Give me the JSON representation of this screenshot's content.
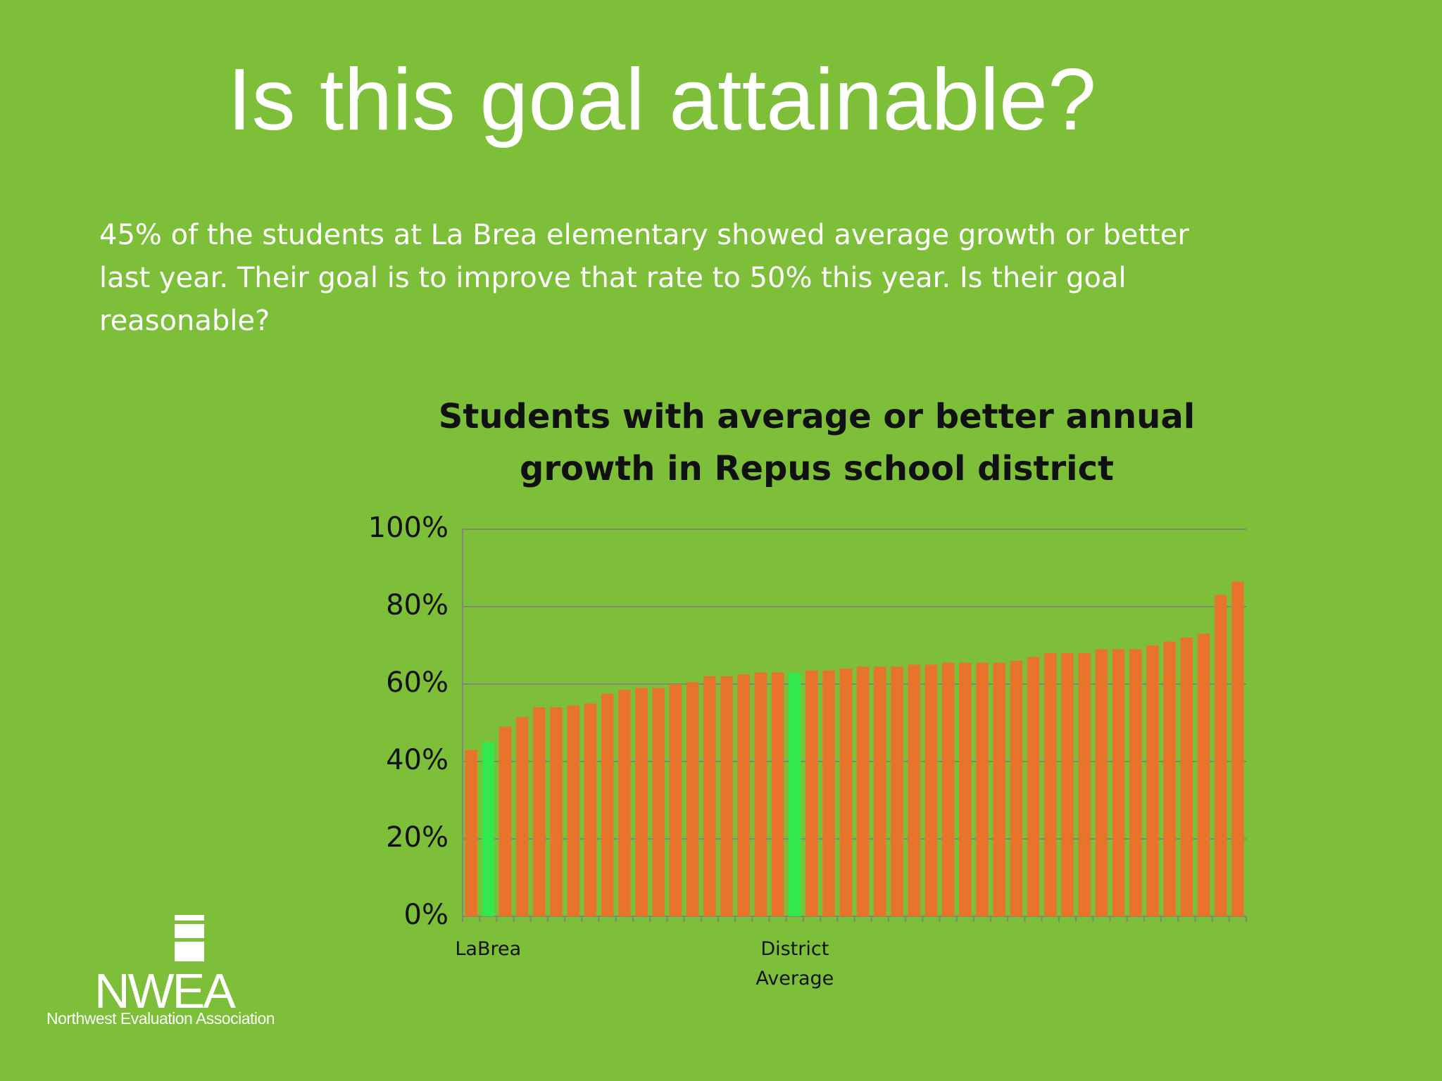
{
  "slide": {
    "title": "Is this goal attainable?",
    "body": [
      "45% of the students at La Brea elementary showed average growth or better",
      "last year.  Their goal is to improve that rate to 50% this year.  Is their goal",
      "reasonable?"
    ],
    "logo": {
      "name": "NWEA",
      "tagline": "Northwest Evaluation Association"
    }
  },
  "chart_data": {
    "type": "bar",
    "title": [
      "Students with average or better annual",
      "growth in Repus school district"
    ],
    "categories": [
      null,
      "LaBrea",
      null,
      null,
      null,
      null,
      null,
      null,
      null,
      null,
      null,
      null,
      null,
      null,
      null,
      null,
      null,
      null,
      null,
      "District Average",
      null,
      null,
      null,
      null,
      null,
      null,
      null,
      null,
      null,
      null,
      null,
      null,
      null,
      null,
      null,
      null,
      null,
      null,
      null,
      null,
      null,
      null,
      null,
      null,
      null,
      null
    ],
    "values": [
      43,
      45,
      49,
      51.5,
      54,
      54,
      54.5,
      55,
      57.5,
      58.5,
      59,
      59,
      60,
      60.5,
      62,
      62,
      62.5,
      63,
      63,
      63,
      63.5,
      63.5,
      64,
      64.5,
      64.5,
      64.5,
      65,
      65,
      65.5,
      65.5,
      65.5,
      65.5,
      66,
      67,
      68,
      68,
      68,
      69,
      69,
      69,
      70,
      71,
      72,
      73,
      83,
      86.5
    ],
    "colors": [
      "#e8732a",
      "#33e84d",
      "#e8732a",
      "#e8732a",
      "#e8732a",
      "#e8732a",
      "#e8732a",
      "#e8732a",
      "#e8732a",
      "#e8732a",
      "#e8732a",
      "#e8732a",
      "#e8732a",
      "#e8732a",
      "#e8732a",
      "#e8732a",
      "#e8732a",
      "#e8732a",
      "#e8732a",
      "#33e84d",
      "#e8732a",
      "#e8732a",
      "#e8732a",
      "#e8732a",
      "#e8732a",
      "#e8732a",
      "#e8732a",
      "#e8732a",
      "#e8732a",
      "#e8732a",
      "#e8732a",
      "#e8732a",
      "#e8732a",
      "#e8732a",
      "#e8732a",
      "#e8732a",
      "#e8732a",
      "#e8732a",
      "#e8732a",
      "#e8732a",
      "#e8732a",
      "#e8732a",
      "#e8732a",
      "#e8732a",
      "#e8732a",
      "#e8732a"
    ],
    "ylim": [
      0,
      100
    ],
    "yticks": [
      {
        "value": 0,
        "label": "0%"
      },
      {
        "value": 20,
        "label": "20%"
      },
      {
        "value": 40,
        "label": "40%"
      },
      {
        "value": 60,
        "label": "60%"
      },
      {
        "value": 80,
        "label": "80%"
      },
      {
        "value": 100,
        "label": "100%"
      }
    ],
    "grid": true
  }
}
